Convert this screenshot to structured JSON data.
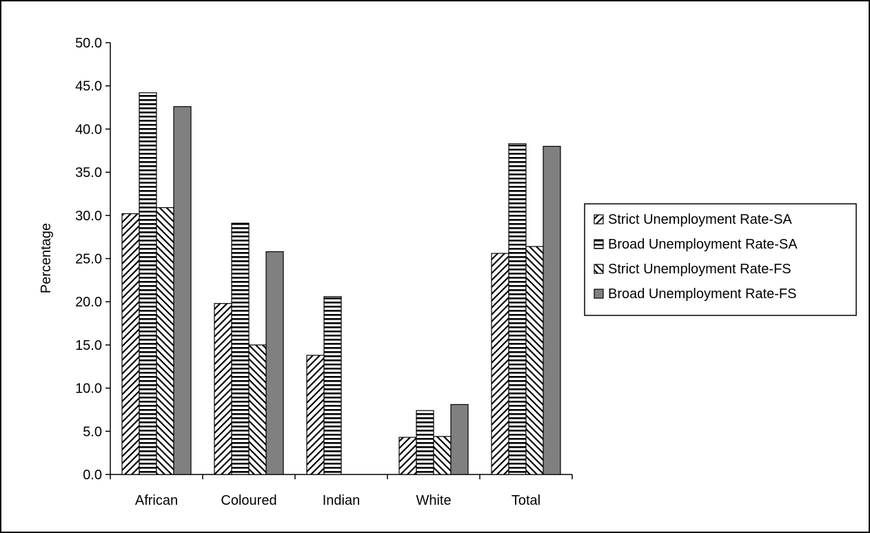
{
  "chart_data": {
    "type": "bar",
    "title": "",
    "xlabel": "",
    "ylabel": "Percentage",
    "ylim": [
      0,
      50
    ],
    "ytick_step": 5,
    "ytick_labels": [
      "0.0",
      "5.0",
      "10.0",
      "15.0",
      "20.0",
      "25.0",
      "30.0",
      "35.0",
      "40.0",
      "45.0",
      "50.0"
    ],
    "categories": [
      "African",
      "Coloured",
      "Indian",
      "White",
      "Total"
    ],
    "series": [
      {
        "name": "Strict Unemployment Rate-SA",
        "values": [
          30.2,
          19.8,
          13.8,
          4.3,
          25.6
        ],
        "pattern": "diagonal-forward",
        "color": "#000000"
      },
      {
        "name": "Broad Unemployment Rate-SA",
        "values": [
          44.2,
          29.1,
          20.6,
          7.4,
          38.3
        ],
        "pattern": "horizontal",
        "color": "#000000"
      },
      {
        "name": "Strict Unemployment Rate-FS",
        "values": [
          30.9,
          15.0,
          null,
          4.4,
          26.4
        ],
        "pattern": "diagonal-back",
        "color": "#000000"
      },
      {
        "name": "Broad Unemployment Rate-FS",
        "values": [
          42.6,
          25.8,
          null,
          8.1,
          38.0
        ],
        "pattern": "solid",
        "color": "#808080"
      }
    ],
    "grid": false,
    "legend_position": "right"
  }
}
